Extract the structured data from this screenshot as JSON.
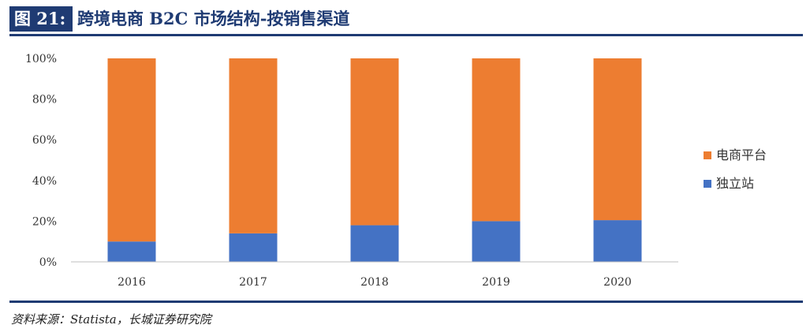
{
  "header": {
    "fig_label": "图 21:",
    "title": "跨境电商 B2C 市场结构-按销售渠道"
  },
  "source_note": "资料来源：Statista，长城证券研究院",
  "colors": {
    "accent": "#1f3b73",
    "series_platform": "#ed7d31",
    "series_independent": "#4472c4"
  },
  "chart_data": {
    "type": "bar",
    "stacked": true,
    "categories": [
      "2016",
      "2017",
      "2018",
      "2019",
      "2020"
    ],
    "series": [
      {
        "name": "独立站",
        "values": [
          10,
          14,
          18,
          20,
          20.5
        ]
      },
      {
        "name": "电商平台",
        "values": [
          90,
          86,
          82,
          80,
          79.5
        ]
      }
    ],
    "yticks": [
      "0%",
      "20%",
      "40%",
      "60%",
      "80%",
      "100%"
    ],
    "ylim": [
      0,
      100
    ],
    "legend": [
      {
        "name": "电商平台",
        "color_key": "series_platform"
      },
      {
        "name": "独立站",
        "color_key": "series_independent"
      }
    ],
    "legend_position": "right",
    "grid": false
  }
}
